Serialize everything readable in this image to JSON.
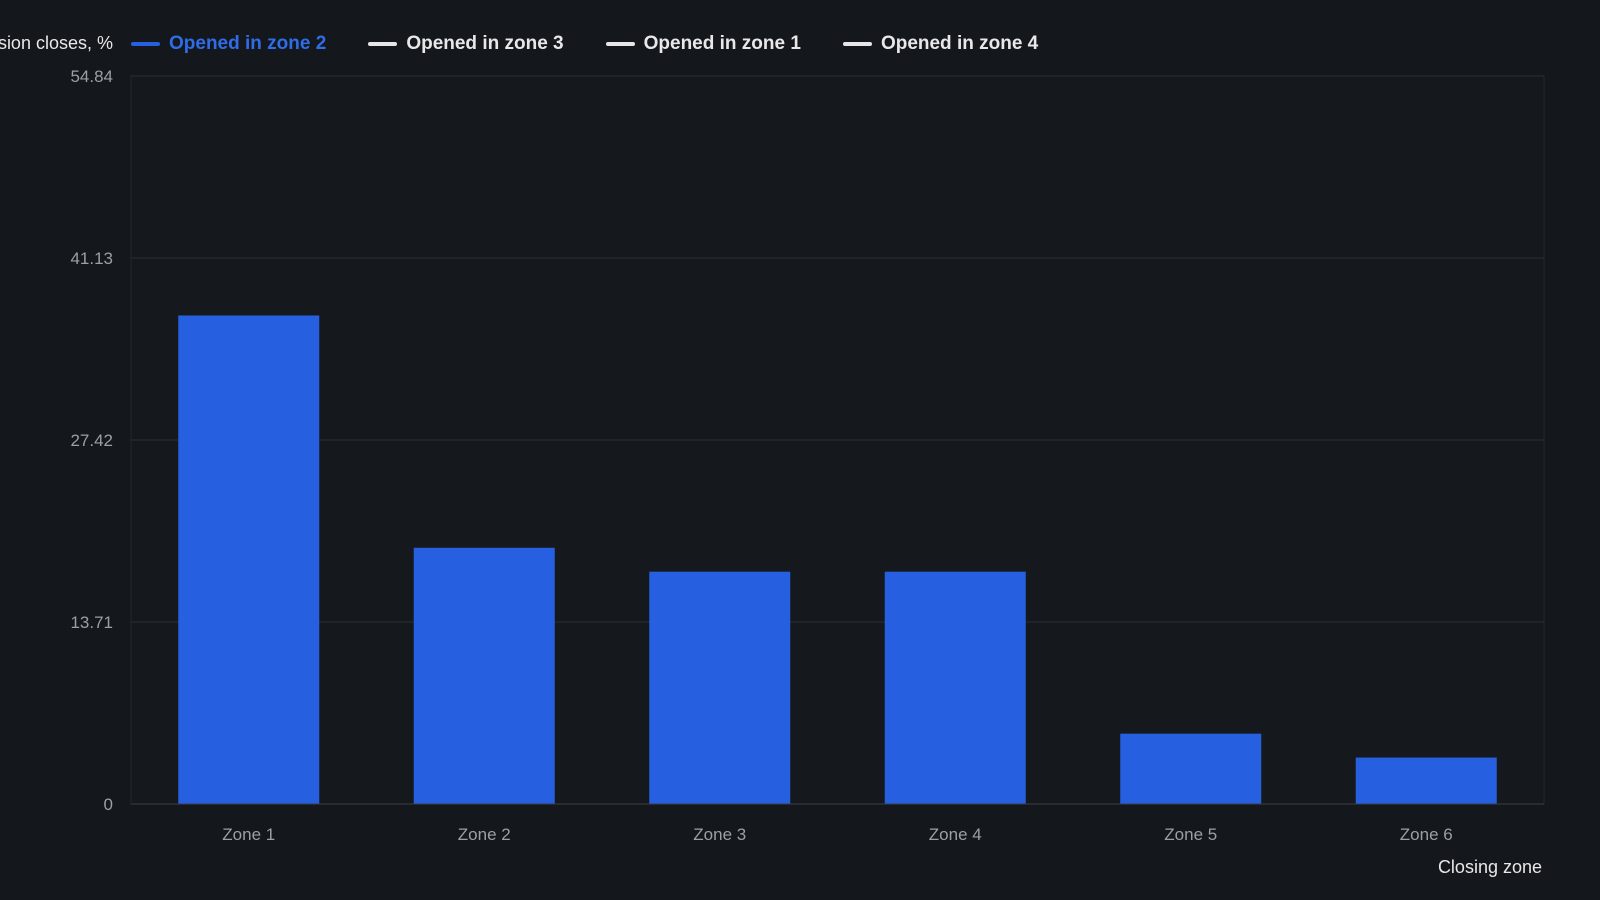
{
  "chart_data": {
    "type": "bar",
    "ylabel": "sion closes, %",
    "xlabel": "Closing zone",
    "categories": [
      "Zone 1",
      "Zone 2",
      "Zone 3",
      "Zone 4",
      "Zone 5",
      "Zone 6"
    ],
    "yticks": [
      "0",
      "13.71",
      "27.42",
      "41.13",
      "54.84"
    ],
    "ylim": [
      0,
      54.84
    ],
    "grid": true,
    "legend_position": "top",
    "series": [
      {
        "name": "Opened in zone 2",
        "color": "#2660e0",
        "values": [
          36.8,
          19.3,
          17.5,
          17.5,
          5.3,
          3.5
        ],
        "active": true
      },
      {
        "name": "Opened in zone 3",
        "color": "#e6e6e6",
        "active": false
      },
      {
        "name": "Opened in zone 1",
        "color": "#e6e6e6",
        "active": false
      },
      {
        "name": "Opened in zone 4",
        "color": "#e6e6e6",
        "active": false
      }
    ],
    "colors": {
      "background": "#14171c",
      "plot_background": "#15181d",
      "grid": "#2a2e35",
      "tick_text": "#9aa0a6",
      "active_legend_text": "#2f6de8",
      "inactive_legend_text": "#e8e8e8"
    }
  }
}
